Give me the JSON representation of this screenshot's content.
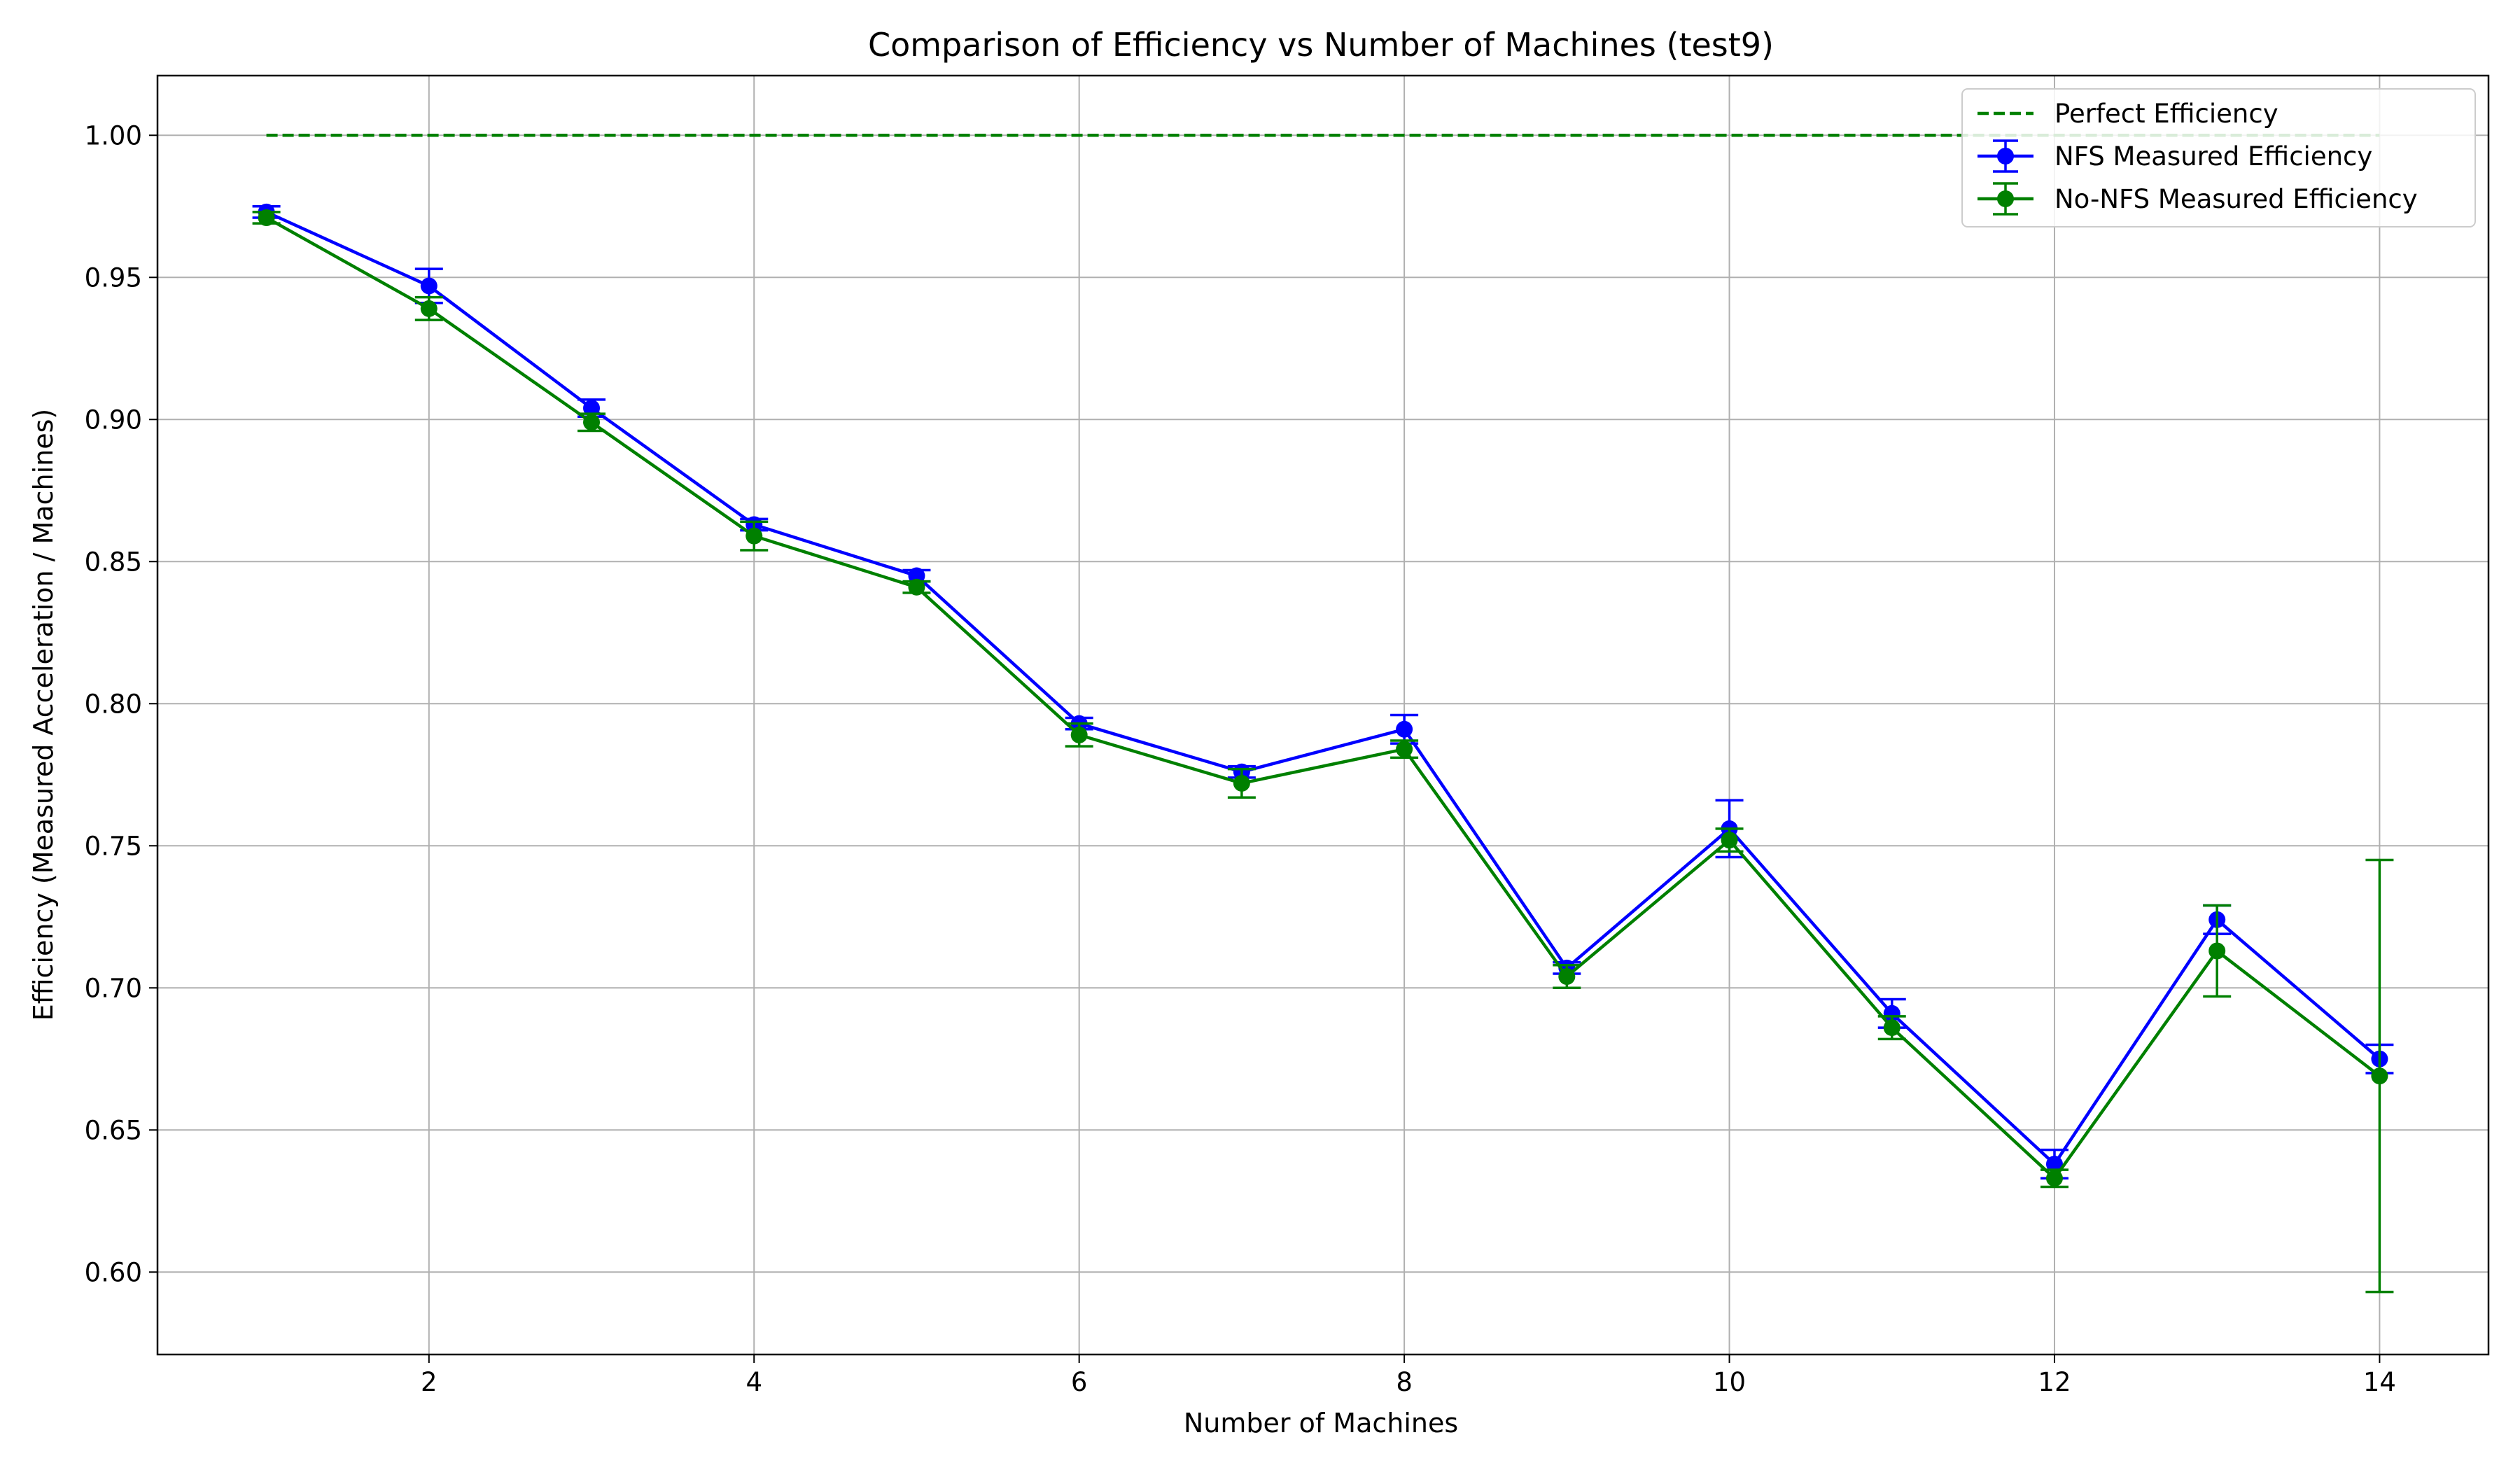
{
  "chart_data": {
    "type": "line",
    "title": "Comparison of Efficiency vs Number of Machines (test9)",
    "xlabel": "Number of Machines",
    "ylabel": "Efficiency (Measured Acceleration / Machines)",
    "xlim": [
      0.33,
      14.67
    ],
    "ylim": [
      0.571,
      1.021
    ],
    "xticks": [
      2,
      4,
      6,
      8,
      10,
      12,
      14
    ],
    "xtick_labels": [
      "2",
      "4",
      "6",
      "8",
      "10",
      "12",
      "14"
    ],
    "yticks": [
      0.6,
      0.65,
      0.7,
      0.75,
      0.8,
      0.85,
      0.9,
      0.95,
      1.0
    ],
    "ytick_labels": [
      "0.60",
      "0.65",
      "0.70",
      "0.75",
      "0.80",
      "0.85",
      "0.90",
      "0.95",
      "1.00"
    ],
    "grid": true,
    "legend_position": "top-right",
    "x": [
      1,
      2,
      3,
      4,
      5,
      6,
      7,
      8,
      9,
      10,
      11,
      12,
      13,
      14
    ],
    "series": [
      {
        "name": "Perfect Efficiency",
        "style": "dashed",
        "color": "#008000",
        "values": [
          1,
          1,
          1,
          1,
          1,
          1,
          1,
          1,
          1,
          1,
          1,
          1,
          1,
          1
        ]
      },
      {
        "name": "NFS Measured Efficiency",
        "style": "errorbar",
        "color": "#0000ff",
        "values": [
          0.973,
          0.947,
          0.904,
          0.863,
          0.845,
          0.793,
          0.776,
          0.791,
          0.707,
          0.756,
          0.691,
          0.638,
          0.724,
          0.675
        ],
        "errors": [
          0.002,
          0.006,
          0.003,
          0.002,
          0.002,
          0.002,
          0.002,
          0.005,
          0.002,
          0.01,
          0.005,
          0.005,
          0.005,
          0.005
        ]
      },
      {
        "name": "No-NFS Measured Efficiency",
        "style": "errorbar",
        "color": "#008000",
        "values": [
          0.971,
          0.939,
          0.899,
          0.859,
          0.841,
          0.789,
          0.772,
          0.784,
          0.704,
          0.752,
          0.686,
          0.633,
          0.713,
          0.669
        ],
        "errors": [
          0.002,
          0.004,
          0.003,
          0.005,
          0.002,
          0.004,
          0.005,
          0.003,
          0.004,
          0.004,
          0.004,
          0.003,
          0.016,
          0.076
        ]
      }
    ]
  }
}
